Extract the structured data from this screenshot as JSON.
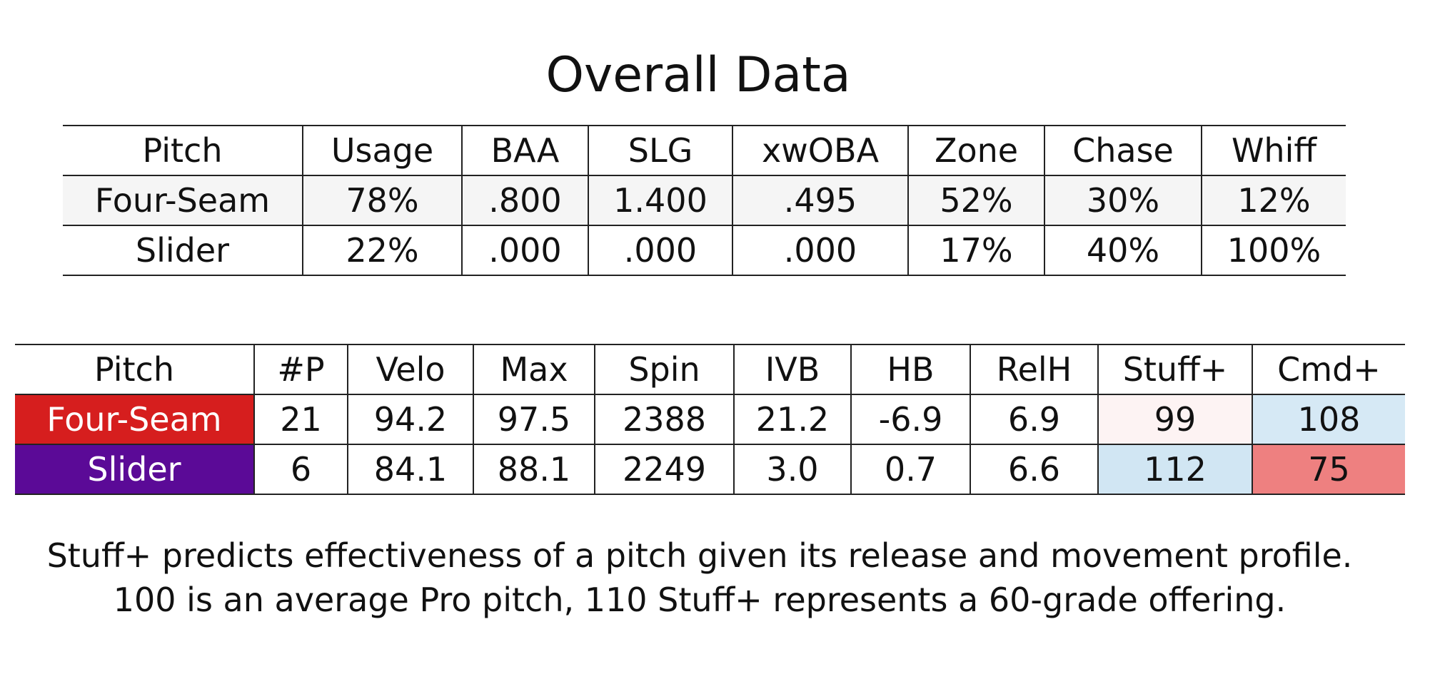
{
  "title": "Overall Data",
  "overall_table": {
    "headers": [
      "Pitch",
      "Usage",
      "BAA",
      "SLG",
      "xwOBA",
      "Zone",
      "Chase",
      "Whiff"
    ],
    "rows": [
      [
        "Four-Seam",
        "78%",
        ".800",
        "1.400",
        ".495",
        "52%",
        "30%",
        "12%"
      ],
      [
        "Slider",
        "22%",
        ".000",
        ".000",
        ".000",
        "17%",
        "40%",
        "100%"
      ]
    ]
  },
  "pitch_table": {
    "headers": [
      "Pitch",
      "#P",
      "Velo",
      "Max",
      "Spin",
      "IVB",
      "HB",
      "RelH",
      "Stuff+",
      "Cmd+"
    ],
    "rows": [
      [
        "Four-Seam",
        "21",
        "94.2",
        "97.5",
        "2388",
        "21.2",
        "-6.9",
        "6.9",
        "99",
        "108"
      ],
      [
        "Slider",
        "6",
        "84.1",
        "88.1",
        "2249",
        "3.0",
        "0.7",
        "6.6",
        "112",
        "75"
      ]
    ]
  },
  "footnote": [
    "Stuff+ predicts effectiveness of a pitch given its release and movement profile.",
    "100 is an average Pro pitch, 110 Stuff+ represents a 60-grade offering."
  ]
}
